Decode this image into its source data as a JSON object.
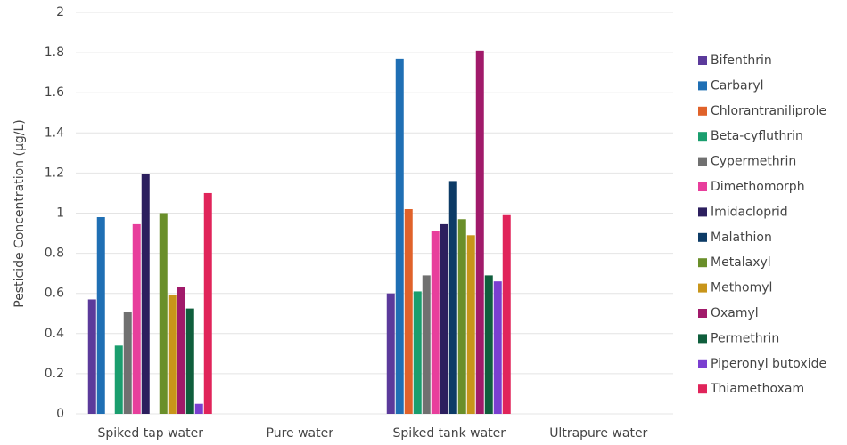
{
  "chart_data": {
    "type": "bar",
    "y_label": "Pesticide Concentration (µg/L)",
    "categories": [
      "Spiked tap water",
      "Pure water",
      "Spiked tank water",
      "Ultrapure water"
    ],
    "ylim": [
      0,
      2
    ],
    "yticks": [
      0,
      0.2,
      0.4,
      0.6,
      0.8,
      1,
      1.2,
      1.4,
      1.6,
      1.8,
      2
    ],
    "grid": true,
    "legend": "right",
    "series": [
      {
        "name": "Bifenthrin",
        "color": "#5b3a9b",
        "values": [
          0.57,
          0,
          0.6,
          0
        ]
      },
      {
        "name": "Carbaryl",
        "color": "#1f6fb4",
        "values": [
          0.98,
          0,
          1.77,
          0
        ]
      },
      {
        "name": "Chlorantraniliprole",
        "color": "#e0622a",
        "values": [
          0,
          0,
          1.02,
          0
        ]
      },
      {
        "name": "Beta-cyfluthrin",
        "color": "#1a9e6e",
        "values": [
          0.34,
          0,
          0.61,
          0
        ]
      },
      {
        "name": "Cypermethrin",
        "color": "#707070",
        "values": [
          0.51,
          0,
          0.69,
          0
        ]
      },
      {
        "name": "Dimethomorph",
        "color": "#e83e9c",
        "values": [
          0.945,
          0,
          0.91,
          0
        ]
      },
      {
        "name": "Imidacloprid",
        "color": "#2c1f5e",
        "values": [
          1.195,
          0,
          0.945,
          0
        ]
      },
      {
        "name": "Malathion",
        "color": "#0d3b66",
        "values": [
          0,
          0,
          1.16,
          0
        ]
      },
      {
        "name": "Metalaxyl",
        "color": "#6a8f2a",
        "values": [
          1.0,
          0,
          0.97,
          0
        ]
      },
      {
        "name": "Methomyl",
        "color": "#c8951a",
        "values": [
          0.59,
          0,
          0.89,
          0
        ]
      },
      {
        "name": "Oxamyl",
        "color": "#a11a6a",
        "values": [
          0.63,
          0,
          1.81,
          0
        ]
      },
      {
        "name": "Permethrin",
        "color": "#0f5e3c",
        "values": [
          0.525,
          0,
          0.69,
          0
        ]
      },
      {
        "name": "Piperonyl butoxide",
        "color": "#7a3fd0",
        "values": [
          0.05,
          0,
          0.66,
          0
        ]
      },
      {
        "name": "Thiamethoxam",
        "color": "#e0245a",
        "values": [
          1.1,
          0,
          0.99,
          0
        ]
      }
    ]
  }
}
